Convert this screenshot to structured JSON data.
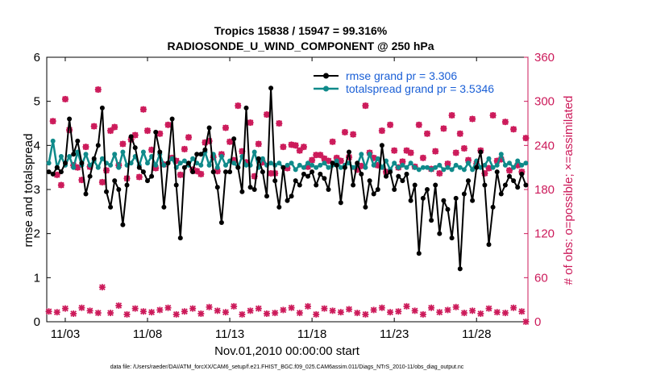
{
  "chart_data": {
    "type": "line",
    "title": "Tropics 15838 / 15947 = 99.316%",
    "subtitle": "RADIOSONDE_U_WIND_COMPONENT @ 250 hPa",
    "xlabel": "Nov.01,2010 00:00:00 start",
    "ylabel_left": "rmse and totalspread",
    "ylabel_right": "# of obs: o=possible; ×=assimilated",
    "footnote": "data file: /Users/raeder/DAI/ATM_forcXX/CAM6_setup/f.e21.FHIST_BGC.f09_025.CAM6assim.011/Diags_NTrS_2010-11/obs_diag_output.nc",
    "x_range": [
      0.875,
      30.125
    ],
    "x_ticks": [
      2.0,
      7.0,
      12.0,
      17.0,
      22.0,
      27.0
    ],
    "x_tick_labels": [
      "11/03",
      "11/08",
      "11/13",
      "11/18",
      "11/23",
      "11/28"
    ],
    "ylim_left": [
      0,
      6
    ],
    "yticks_left": [
      0,
      1,
      2,
      3,
      4,
      5,
      6
    ],
    "ylim_right": [
      0,
      360
    ],
    "yticks_right": [
      0,
      60,
      120,
      180,
      240,
      300,
      360
    ],
    "legend": [
      "rmse grand pr = 3.306",
      "totalspread grand pr = 3.5346"
    ],
    "colors": {
      "rmse": "#000000",
      "spread": "#0f8a8a",
      "obs": "#cc1a5a",
      "legend_text": "#1a5fd6"
    },
    "series": [
      {
        "name": "rmse",
        "axis": "left",
        "x": [
          1.0,
          1.25,
          1.5,
          1.75,
          2.0,
          2.25,
          2.5,
          2.75,
          3.0,
          3.25,
          3.5,
          3.75,
          4.0,
          4.25,
          4.5,
          4.75,
          5.0,
          5.25,
          5.5,
          5.75,
          6.0,
          6.25,
          6.5,
          6.75,
          7.0,
          7.25,
          7.5,
          7.75,
          8.0,
          8.25,
          8.5,
          8.75,
          9.0,
          9.25,
          9.5,
          9.75,
          10.0,
          10.25,
          10.5,
          10.75,
          11.0,
          11.25,
          11.5,
          11.75,
          12.0,
          12.25,
          12.5,
          12.75,
          13.0,
          13.25,
          13.5,
          13.75,
          14.0,
          14.25,
          14.5,
          14.75,
          15.0,
          15.25,
          15.5,
          15.75,
          16.0,
          16.25,
          16.5,
          16.75,
          17.0,
          17.25,
          17.5,
          17.75,
          18.0,
          18.25,
          18.5,
          18.75,
          19.0,
          19.25,
          19.5,
          19.75,
          20.0,
          20.25,
          20.5,
          20.75,
          21.0,
          21.25,
          21.5,
          21.75,
          22.0,
          22.25,
          22.5,
          22.75,
          23.0,
          23.25,
          23.5,
          23.75,
          24.0,
          24.25,
          24.5,
          24.75,
          25.0,
          25.25,
          25.5,
          25.75,
          26.0,
          26.25,
          26.5,
          26.75,
          27.0,
          27.25,
          27.5,
          27.75,
          28.0,
          28.25,
          28.5,
          28.75,
          29.0,
          29.25,
          29.5,
          29.75,
          30.0
        ],
        "values": [
          3.4,
          3.35,
          3.5,
          3.4,
          3.6,
          4.6,
          3.8,
          4.1,
          3.6,
          2.9,
          3.3,
          3.7,
          4.0,
          4.85,
          2.95,
          2.6,
          3.2,
          3.0,
          2.2,
          3.1,
          4.2,
          3.95,
          3.5,
          3.4,
          3.2,
          3.3,
          4.3,
          3.85,
          2.6,
          3.6,
          4.6,
          3.1,
          1.9,
          3.5,
          3.6,
          3.4,
          3.8,
          3.8,
          3.9,
          4.4,
          3.4,
          3.05,
          2.25,
          3.4,
          3.4,
          4.15,
          3.5,
          2.95,
          4.85,
          3.05,
          3.0,
          3.7,
          3.4,
          2.85,
          5.3,
          3.2,
          2.6,
          3.5,
          2.75,
          2.85,
          3.2,
          3.1,
          3.35,
          3.3,
          3.4,
          3.1,
          3.35,
          3.25,
          3.0,
          3.6,
          3.55,
          2.7,
          3.5,
          3.85,
          3.1,
          3.6,
          3.35,
          2.6,
          3.2,
          2.9,
          3.0,
          4.0,
          3.3,
          3.4,
          3.0,
          3.3,
          3.2,
          3.35,
          2.75,
          3.1,
          1.55,
          2.8,
          3.0,
          2.3,
          3.1,
          2.0,
          2.75,
          2.55,
          1.9,
          2.8,
          1.2,
          2.9,
          3.2,
          2.75,
          3.5,
          3.85,
          3.1,
          1.75,
          2.6,
          3.4,
          2.9,
          3.1,
          3.3,
          3.2,
          3.05,
          3.35,
          3.1
        ],
        "marker": "dot"
      },
      {
        "name": "totalspread",
        "axis": "left",
        "x": [
          1.0,
          1.25,
          1.5,
          1.75,
          2.0,
          2.25,
          2.5,
          2.75,
          3.0,
          3.25,
          3.5,
          3.75,
          4.0,
          4.25,
          4.5,
          4.75,
          5.0,
          5.25,
          5.5,
          5.75,
          6.0,
          6.25,
          6.5,
          6.75,
          7.0,
          7.25,
          7.5,
          7.75,
          8.0,
          8.25,
          8.5,
          8.75,
          9.0,
          9.25,
          9.5,
          9.75,
          10.0,
          10.25,
          10.5,
          10.75,
          11.0,
          11.25,
          11.5,
          11.75,
          12.0,
          12.25,
          12.5,
          12.75,
          13.0,
          13.25,
          13.5,
          13.75,
          14.0,
          14.25,
          14.5,
          14.75,
          15.0,
          15.25,
          15.5,
          15.75,
          16.0,
          16.25,
          16.5,
          16.75,
          17.0,
          17.25,
          17.5,
          17.75,
          18.0,
          18.25,
          18.5,
          18.75,
          19.0,
          19.25,
          19.5,
          19.75,
          20.0,
          20.25,
          20.5,
          20.75,
          21.0,
          21.25,
          21.5,
          21.75,
          22.0,
          22.25,
          22.5,
          22.75,
          23.0,
          23.25,
          23.5,
          23.75,
          24.0,
          24.25,
          24.5,
          24.75,
          25.0,
          25.25,
          25.5,
          25.75,
          26.0,
          26.25,
          26.5,
          26.75,
          27.0,
          27.25,
          27.5,
          27.75,
          28.0,
          28.25,
          28.5,
          28.75,
          29.0,
          29.25,
          29.5,
          29.75,
          30.0
        ],
        "values": [
          3.6,
          4.1,
          3.5,
          3.75,
          3.55,
          3.75,
          3.5,
          3.85,
          3.55,
          3.8,
          3.55,
          3.65,
          3.5,
          3.7,
          3.6,
          3.55,
          3.8,
          3.5,
          3.85,
          3.55,
          3.6,
          3.75,
          3.55,
          3.85,
          3.6,
          3.75,
          3.55,
          3.8,
          3.55,
          3.6,
          3.7,
          3.5,
          3.6,
          3.65,
          3.55,
          3.7,
          3.6,
          3.55,
          3.85,
          3.55,
          3.8,
          3.5,
          3.75,
          3.55,
          3.65,
          3.6,
          3.5,
          3.75,
          3.55,
          3.55,
          3.85,
          3.5,
          3.7,
          3.55,
          3.6,
          3.55,
          3.6,
          3.5,
          3.55,
          3.6,
          3.45,
          3.55,
          3.5,
          3.6,
          3.55,
          3.5,
          3.55,
          3.6,
          3.5,
          3.55,
          3.65,
          3.5,
          3.55,
          3.6,
          3.5,
          3.55,
          3.8,
          3.5,
          3.8,
          3.55,
          3.7,
          3.5,
          3.65,
          3.45,
          3.6,
          3.5,
          3.55,
          3.5,
          3.6,
          3.5,
          3.45,
          3.5,
          3.5,
          3.45,
          3.5,
          3.55,
          3.45,
          3.5,
          3.45,
          3.55,
          3.5,
          3.45,
          3.6,
          3.45,
          3.65,
          3.5,
          3.55,
          3.7,
          3.5,
          3.55,
          3.8,
          3.55,
          3.6,
          3.5,
          3.65,
          3.55,
          3.6
        ],
        "marker": "dot"
      },
      {
        "name": "obs_possible",
        "axis": "right",
        "marker": "circle",
        "x": [
          1.25,
          1.5,
          1.75,
          2.0,
          2.25,
          2.5,
          2.75,
          3.0,
          3.25,
          3.5,
          3.75,
          4.0,
          4.25,
          4.5,
          4.75,
          5.0,
          5.25,
          5.5,
          5.75,
          6.0,
          6.25,
          6.5,
          6.75,
          7.0,
          7.25,
          7.5,
          7.75,
          8.0,
          8.25,
          8.5,
          8.75,
          9.0,
          9.25,
          9.5,
          9.75,
          10.0,
          10.25,
          10.5,
          10.75,
          11.0,
          11.25,
          11.5,
          11.75,
          12.0,
          12.25,
          12.5,
          12.75,
          13.0,
          13.25,
          13.5,
          13.75,
          14.0,
          14.25,
          14.5,
          14.75,
          15.0,
          15.25,
          15.5,
          15.75,
          16.0,
          16.25,
          16.5,
          16.75,
          17.0,
          17.25,
          17.5,
          17.75,
          18.0,
          18.25,
          18.5,
          18.75,
          19.0,
          19.25,
          19.5,
          19.75,
          20.0,
          20.25,
          20.5,
          20.75,
          21.0,
          21.25,
          21.5,
          21.75,
          22.0,
          22.25,
          22.5,
          22.75,
          23.0,
          23.25,
          23.5,
          23.75,
          24.0,
          24.25,
          24.5,
          24.75,
          25.0,
          25.25,
          25.5,
          25.75,
          26.0,
          26.25,
          26.5,
          26.75,
          27.0,
          27.25,
          27.5,
          27.75,
          28.0,
          28.25,
          28.5,
          28.75,
          29.0,
          29.25,
          29.5,
          29.75,
          30.0
        ],
        "values": [
          273,
          200,
          186,
          303,
          261,
          213,
          210,
          193,
          238,
          211,
          266,
          316,
          190,
          206,
          260,
          265,
          213,
          242,
          195,
          248,
          254,
          197,
          289,
          260,
          234,
          209,
          256,
          214,
          268,
          223,
          219,
          200,
          235,
          251,
          207,
          205,
          201,
          244,
          246,
          224,
          205,
          228,
          264,
          245,
          220,
          294,
          232,
          217,
          271,
          198,
          242,
          217,
          282,
          202,
          202,
          270,
          238,
          209,
          241,
          240,
          233,
          238,
          211,
          220,
          227,
          227,
          222,
          219,
          245,
          223,
          219,
          258,
          224,
          255,
          207,
          212,
          294,
          230,
          223,
          213,
          260,
          204,
          268,
          233,
          210,
          218,
          233,
          230,
          211,
          268,
          223,
          256,
          208,
          232,
          202,
          263,
          215,
          281,
          230,
          256,
          236,
          220,
          276,
          215,
          233,
          202,
          209,
          281,
          219,
          221,
          272,
          206,
          262,
          213,
          204,
          250
        ],
        "count": 116
      },
      {
        "name": "obs_assimilated",
        "axis": "right",
        "marker": "x",
        "x": [
          1.25,
          1.5,
          1.75,
          2.0,
          2.25,
          2.5,
          2.75,
          3.0,
          3.25,
          3.5,
          3.75,
          4.0,
          4.25,
          4.5,
          4.75,
          5.0,
          5.25,
          5.5,
          5.75,
          6.0,
          6.25,
          6.5,
          6.75,
          7.0,
          7.25,
          7.5,
          7.75,
          8.0,
          8.25,
          8.5,
          8.75,
          9.0,
          9.25,
          9.5,
          9.75,
          10.0,
          10.25,
          10.5,
          10.75,
          11.0,
          11.25,
          11.5,
          11.75,
          12.0,
          12.25,
          12.5,
          12.75,
          13.0,
          13.25,
          13.5,
          13.75,
          14.0,
          14.25,
          14.5,
          14.75,
          15.0,
          15.25,
          15.5,
          15.75,
          16.0,
          16.25,
          16.5,
          16.75,
          17.0,
          17.25,
          17.5,
          17.75,
          18.0,
          18.25,
          18.5,
          18.75,
          19.0,
          19.25,
          19.5,
          19.75,
          20.0,
          20.25,
          20.5,
          20.75,
          21.0,
          21.25,
          21.5,
          21.75,
          22.0,
          22.25,
          22.5,
          22.75,
          23.0,
          23.25,
          23.5,
          23.75,
          24.0,
          24.25,
          24.5,
          24.75,
          25.0,
          25.25,
          25.5,
          25.75,
          26.0,
          26.25,
          26.5,
          26.75,
          27.0,
          27.25,
          27.5,
          27.75,
          28.0,
          28.25,
          28.5,
          28.75,
          29.0,
          29.25,
          29.5,
          29.75,
          30.0
        ],
        "values": [
          273,
          200,
          186,
          303,
          261,
          213,
          210,
          193,
          238,
          211,
          266,
          316,
          190,
          206,
          260,
          265,
          213,
          242,
          195,
          248,
          254,
          197,
          289,
          260,
          234,
          209,
          256,
          214,
          268,
          223,
          219,
          200,
          235,
          251,
          207,
          205,
          201,
          244,
          246,
          224,
          205,
          228,
          264,
          245,
          220,
          294,
          232,
          217,
          271,
          198,
          242,
          217,
          282,
          202,
          202,
          270,
          238,
          209,
          241,
          240,
          233,
          238,
          211,
          220,
          227,
          227,
          222,
          219,
          245,
          223,
          219,
          258,
          224,
          255,
          207,
          212,
          294,
          230,
          223,
          213,
          260,
          204,
          268,
          233,
          210,
          218,
          233,
          230,
          211,
          268,
          223,
          256,
          208,
          232,
          202,
          263,
          215,
          281,
          230,
          256,
          236,
          220,
          276,
          215,
          233,
          202,
          209,
          281,
          219,
          221,
          272,
          206,
          262,
          213,
          204,
          250
        ],
        "count": 116
      },
      {
        "name": "obs_low",
        "axis": "right",
        "marker": "x",
        "x": [
          1.0,
          1.5,
          2.0,
          2.5,
          3.0,
          3.5,
          4.0,
          4.25,
          4.75,
          5.25,
          5.75,
          6.25,
          6.75,
          7.25,
          7.75,
          8.25,
          8.75,
          9.25,
          9.75,
          10.25,
          10.75,
          11.25,
          11.75,
          12.25,
          12.75,
          13.25,
          13.75,
          14.25,
          14.75,
          15.25,
          15.75,
          16.25,
          16.75,
          17.25,
          17.75,
          18.25,
          18.75,
          19.25,
          19.75,
          20.25,
          20.75,
          21.25,
          21.75,
          22.25,
          22.75,
          23.25,
          23.75,
          24.25,
          24.75,
          25.25,
          25.75,
          26.25,
          26.75,
          27.25,
          27.75,
          28.25,
          28.75,
          29.25,
          29.75,
          30.0
        ],
        "values": [
          14,
          13,
          18,
          11,
          19,
          15,
          12,
          47,
          12,
          22,
          10,
          18,
          14,
          13,
          16,
          19,
          10,
          14,
          18,
          11,
          20,
          15,
          13,
          21,
          10,
          15,
          18,
          11,
          12,
          16,
          19,
          12,
          21,
          10,
          18,
          15,
          13,
          17,
          12,
          10,
          16,
          19,
          13,
          14,
          21,
          15,
          10,
          19,
          13,
          16,
          20,
          12,
          15,
          11,
          18,
          13,
          12,
          19,
          14,
          0
        ],
        "count": 60
      }
    ]
  }
}
